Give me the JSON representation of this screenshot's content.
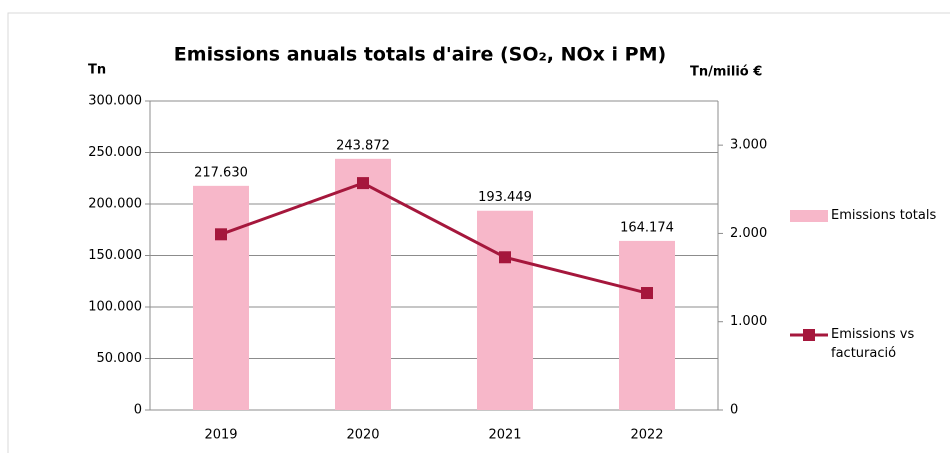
{
  "chart_data": {
    "type": "bar_line",
    "title": "Emissions anuals totals d'aire (SO₂, NOx i PM)",
    "y_label": "Tn",
    "y2_label": "Tn/milió €",
    "categories": [
      "2019",
      "2020",
      "2021",
      "2022"
    ],
    "series": [
      {
        "name": "Emissions totals",
        "type": "bar",
        "color": "#f7b7c9",
        "values": [
          217630,
          243872,
          193449,
          164174
        ],
        "value_labels": [
          "217.630",
          "243.872",
          "193.449",
          "164.174"
        ]
      },
      {
        "name": "Emissions vs facturació",
        "type": "line",
        "axis": "y2",
        "color": "#a5173c",
        "values": [
          1990,
          2570,
          1730,
          1325
        ]
      }
    ],
    "ylim": [
      0,
      300000
    ],
    "yticks": [
      0,
      {
        "value": 50000,
        "label": "50.000"
      },
      {
        "value": 100000,
        "label": "100.000"
      },
      {
        "value": 150000,
        "label": "150.000"
      },
      {
        "value": 200000,
        "label": "200.000"
      },
      {
        "value": 250000,
        "label": "250.000"
      },
      {
        "value": 300000,
        "label": "300.000"
      }
    ],
    "y2lim": [
      0,
      3500
    ],
    "y2ticks": [
      0,
      {
        "value": 1000,
        "label": "1.000"
      },
      {
        "value": 2000,
        "label": "2.000"
      },
      {
        "value": 3000,
        "label": "3.000"
      }
    ],
    "grid": true,
    "legend": "right"
  }
}
